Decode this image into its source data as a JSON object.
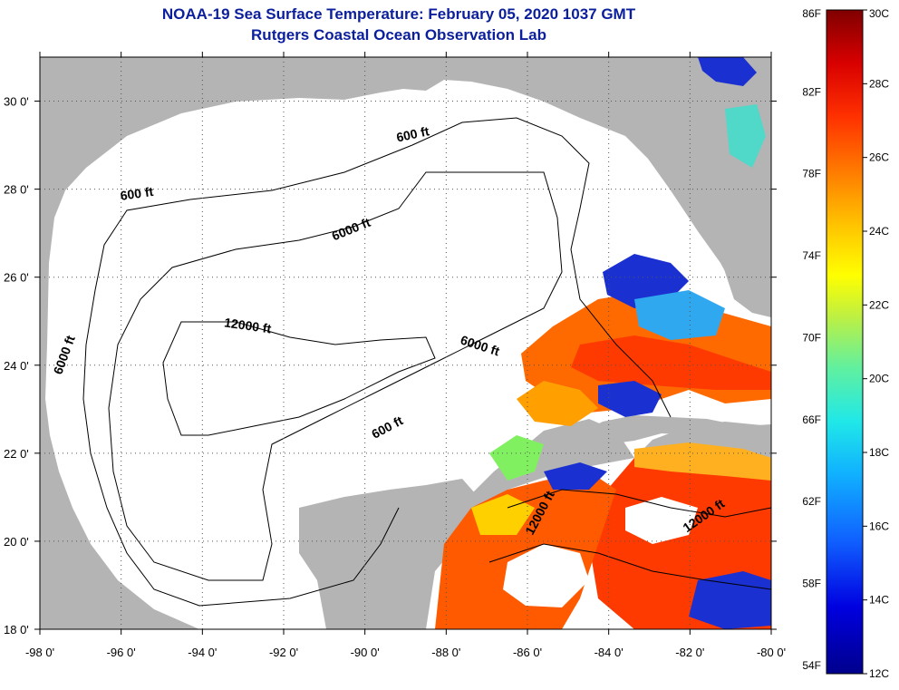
{
  "title": {
    "line1": "NOAA-19 Sea Surface Temperature:  February 05, 2020 1037 GMT",
    "line2": "Rutgers Coastal Ocean Observation Lab"
  },
  "map": {
    "lon_range": [
      -98,
      -80
    ],
    "lat_range": [
      18,
      31
    ],
    "lon_ticks": [
      {
        "value": -98,
        "label": "-98 0'"
      },
      {
        "value": -96,
        "label": "-96 0'"
      },
      {
        "value": -94,
        "label": "-94 0'"
      },
      {
        "value": -92,
        "label": "-92 0'"
      },
      {
        "value": -90,
        "label": "-90 0'"
      },
      {
        "value": -88,
        "label": "-88 0'"
      },
      {
        "value": -86,
        "label": "-86 0'"
      },
      {
        "value": -84,
        "label": "-84 0'"
      },
      {
        "value": -82,
        "label": "-82 0'"
      },
      {
        "value": -80,
        "label": "-80 0'"
      }
    ],
    "lat_ticks": [
      {
        "value": 30,
        "label": "30 0'"
      },
      {
        "value": 28,
        "label": "28 0'"
      },
      {
        "value": 26,
        "label": "26 0'"
      },
      {
        "value": 24,
        "label": "24 0'"
      },
      {
        "value": 22,
        "label": "22 0'"
      },
      {
        "value": 20,
        "label": "20 0'"
      },
      {
        "value": 18,
        "label": "18 0'"
      }
    ],
    "contour_labels": [
      {
        "text": "600 ft",
        "lon": -88.8,
        "lat": 29.15,
        "angle": -12
      },
      {
        "text": "600 ft",
        "lon": -95.6,
        "lat": 27.8,
        "angle": -8
      },
      {
        "text": "6000 ft",
        "lon": -90.3,
        "lat": 27.0,
        "angle": -22
      },
      {
        "text": "12000 ft",
        "lon": -92.9,
        "lat": 24.8,
        "angle": 8
      },
      {
        "text": "6000 ft",
        "lon": -97.3,
        "lat": 24.2,
        "angle": -70
      },
      {
        "text": "6000 ft",
        "lon": -87.2,
        "lat": 24.35,
        "angle": 18
      },
      {
        "text": "600 ft",
        "lon": -89.4,
        "lat": 22.5,
        "angle": -28
      },
      {
        "text": "12000 ft",
        "lon": -85.6,
        "lat": 20.6,
        "angle": -62
      },
      {
        "text": "12000 ft",
        "lon": -81.6,
        "lat": 20.5,
        "angle": -35
      }
    ]
  },
  "colorbar": {
    "f_labels": [
      {
        "value": 86,
        "label": "86F"
      },
      {
        "value": 82,
        "label": "82F"
      },
      {
        "value": 78,
        "label": "78F"
      },
      {
        "value": 74,
        "label": "74F"
      },
      {
        "value": 70,
        "label": "70F"
      },
      {
        "value": 66,
        "label": "66F"
      },
      {
        "value": 62,
        "label": "62F"
      },
      {
        "value": 58,
        "label": "58F"
      },
      {
        "value": 54,
        "label": "54F"
      }
    ],
    "c_labels": [
      {
        "value": 30,
        "label": "30C"
      },
      {
        "value": 28,
        "label": "28C"
      },
      {
        "value": 26,
        "label": "26C"
      },
      {
        "value": 24,
        "label": "24C"
      },
      {
        "value": 22,
        "label": "22C"
      },
      {
        "value": 20,
        "label": "20C"
      },
      {
        "value": 18,
        "label": "18C"
      },
      {
        "value": 16,
        "label": "16C"
      },
      {
        "value": 14,
        "label": "14C"
      },
      {
        "value": 12,
        "label": "12C"
      }
    ]
  },
  "colors": {
    "land": "#b4b4b4",
    "ocean_cloud": "#ffffff",
    "title": "#0b1f9c",
    "contour": "#000000",
    "sst_warm": "#ff3a00",
    "sst_hot": "#e01800",
    "sst_orange": "#ff8a00",
    "sst_yellow": "#ffcc10",
    "sst_cold": "#1020c0",
    "sst_cyan": "#40d0f0",
    "sst_green": "#80f060"
  }
}
